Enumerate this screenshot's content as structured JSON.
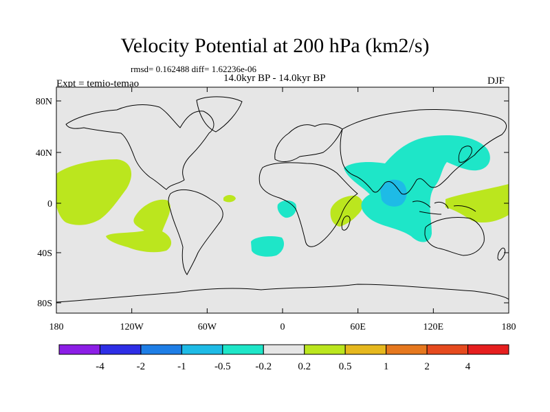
{
  "title": "Velocity Potential at 200 hPa (km2/s)",
  "stats": "rmsd= 0.162488 diff= 1.62236e-06",
  "period": "14.0kyr BP - 14.0kyr BP",
  "experiment": "Expt = temio-temao",
  "season": "DJF",
  "map": {
    "lat_ticks": [
      "80N",
      "40N",
      "0",
      "40S",
      "80S"
    ],
    "lon_ticks": [
      "180",
      "120W",
      "60W",
      "0",
      "60E",
      "120E",
      "180"
    ],
    "ocean_color": "#e6e6e6",
    "coast_color": "#000000"
  },
  "colorbar": {
    "labels": [
      "-4",
      "-2",
      "-1",
      "-0.5",
      "-0.2",
      "0.2",
      "0.5",
      "1",
      "2",
      "4"
    ],
    "colors": [
      "#8c1ee6",
      "#2e2ee6",
      "#1e7ee6",
      "#1ebbe6",
      "#1ee6c8",
      "#e6e6e6",
      "#bbe61e",
      "#e6b81e",
      "#e6781e",
      "#e64a1e",
      "#e61e1e"
    ]
  }
}
